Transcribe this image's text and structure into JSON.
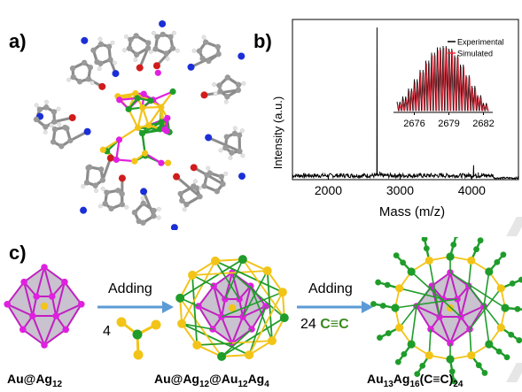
{
  "figure": {
    "panel_labels": {
      "a": "a)",
      "b": "b)",
      "c": "c)"
    }
  },
  "colors": {
    "gold": "#f2c418",
    "silver": "#e020e0",
    "alkynyl_ag": "#1f9c2a",
    "carbon": "#9a9a9a",
    "nitrogen": "#1b2fd6",
    "oxygen": "#d01c1c",
    "hydrogen": "#e4e4e4",
    "experimental_line": "#000000",
    "simulated_line": "#e03040",
    "arrow": "#5b9bd5",
    "alkyne_text": "#3a8a1e"
  },
  "chart_data": [
    {
      "type": "line",
      "name": "mass-spectrum",
      "xlabel": "Mass (m/z)",
      "ylabel": "Intensity (a.u.)",
      "xlim": [
        1500,
        4650
      ],
      "ylim": [
        0,
        1.0
      ],
      "xticks": [
        2000,
        3000,
        4000
      ],
      "xtick_labels": [
        "2000",
        "3000",
        "4000"
      ],
      "grid": false,
      "spectrum": {
        "baseline": 0.03,
        "peaks": [
          {
            "x": 2679,
            "y": 0.95
          },
          {
            "x": 2718,
            "y": 0.05
          },
          {
            "x": 2790,
            "y": 0.035
          },
          {
            "x": 3340,
            "y": 0.04
          },
          {
            "x": 4025,
            "y": 0.09
          },
          {
            "x": 4090,
            "y": 0.045
          }
        ]
      }
    },
    {
      "type": "line",
      "name": "isotope-pattern-inset",
      "legend": [
        {
          "label": "Experimental",
          "color": "#000000"
        },
        {
          "label": "Simulated",
          "color": "#e03040"
        }
      ],
      "legend_position": "top-right",
      "xlim": [
        2674.5,
        2682.5
      ],
      "ylim": [
        0,
        1.0
      ],
      "xticks": [
        2676,
        2679,
        2682
      ],
      "xtick_labels": [
        "2676",
        "2679",
        "2682"
      ],
      "series": [
        {
          "name": "Experimental",
          "x": [
            2674.5,
            2675.0,
            2675.5,
            2676.0,
            2676.5,
            2677.0,
            2677.5,
            2678.0,
            2678.5,
            2679.0,
            2679.5,
            2680.0,
            2680.5,
            2681.0,
            2681.5,
            2682.0
          ],
          "values": [
            0.16,
            0.24,
            0.36,
            0.5,
            0.64,
            0.78,
            0.9,
            0.98,
            1.0,
            0.96,
            0.86,
            0.72,
            0.56,
            0.4,
            0.26,
            0.14
          ]
        },
        {
          "name": "Simulated",
          "x": [
            2674.5,
            2675.0,
            2675.5,
            2676.0,
            2676.5,
            2677.0,
            2677.5,
            2678.0,
            2678.5,
            2679.0,
            2679.5,
            2680.0,
            2680.5,
            2681.0,
            2681.5,
            2682.0
          ],
          "values": [
            0.12,
            0.2,
            0.32,
            0.46,
            0.6,
            0.74,
            0.86,
            0.94,
            0.97,
            0.93,
            0.83,
            0.69,
            0.53,
            0.37,
            0.23,
            0.11
          ]
        }
      ]
    }
  ],
  "scheme": {
    "step1": {
      "label": "Adding",
      "reagent_count": "4"
    },
    "step2": {
      "label": "Adding",
      "reagent_count": "24",
      "reagent": "C≡C"
    },
    "compounds": [
      {
        "parts": [
          [
            "Au@Ag",
            ""
          ],
          [
            "12",
            "sub"
          ]
        ]
      },
      {
        "parts": [
          [
            "Au@Ag",
            ""
          ],
          [
            "12",
            "sub"
          ],
          [
            "@Au",
            ""
          ],
          [
            "12",
            "sub"
          ],
          [
            "Ag",
            ""
          ],
          [
            "4",
            "sub"
          ]
        ]
      },
      {
        "parts": [
          [
            "Au",
            ""
          ],
          [
            "13",
            "sub"
          ],
          [
            "Ag",
            ""
          ],
          [
            "16",
            "sub"
          ],
          [
            "(C≡C)",
            ""
          ],
          [
            "24",
            "sub"
          ]
        ]
      }
    ]
  }
}
